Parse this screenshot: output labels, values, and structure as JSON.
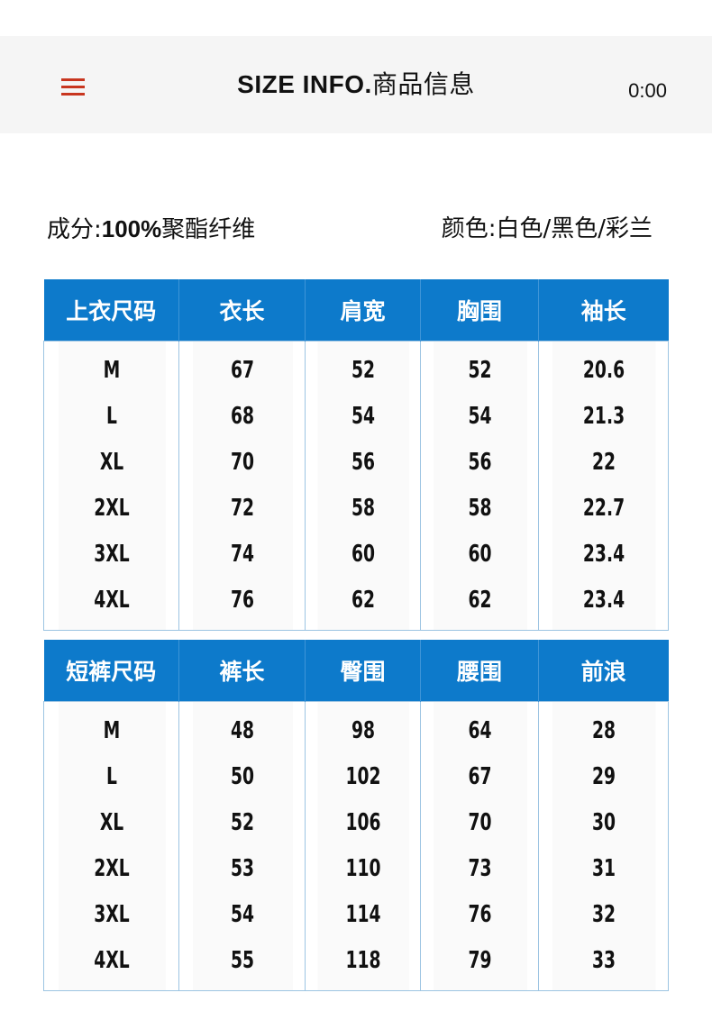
{
  "header": {
    "title_en": "SIZE INFO.",
    "title_cn": "商品信息",
    "time": "0:00",
    "menu_icon": "hamburger-menu-icon",
    "menu_color": "#c8361f"
  },
  "info": {
    "composition_label": "成分:",
    "composition_value": "100%",
    "composition_material": "聚酯纤维",
    "color_label": "颜色:",
    "color_value": "白色/黑色/彩兰"
  },
  "colors": {
    "table_header": "#0d7acb",
    "table_border": "#9cc4e2"
  },
  "top_table": {
    "headers": [
      "上衣尺码",
      "衣长",
      "肩宽",
      "胸围",
      "袖长"
    ],
    "rows": [
      [
        "M",
        "67",
        "52",
        "52",
        "20.6"
      ],
      [
        "L",
        "68",
        "54",
        "54",
        "21.3"
      ],
      [
        "XL",
        "70",
        "56",
        "56",
        "22"
      ],
      [
        "2XL",
        "72",
        "58",
        "58",
        "22.7"
      ],
      [
        "3XL",
        "74",
        "60",
        "60",
        "23.4"
      ],
      [
        "4XL",
        "76",
        "62",
        "62",
        "23.4"
      ]
    ]
  },
  "bottom_table": {
    "headers": [
      "短裤尺码",
      "裤长",
      "臀围",
      "腰围",
      "前浪"
    ],
    "rows": [
      [
        "M",
        "48",
        "98",
        "64",
        "28"
      ],
      [
        "L",
        "50",
        "102",
        "67",
        "29"
      ],
      [
        "XL",
        "52",
        "106",
        "70",
        "30"
      ],
      [
        "2XL",
        "53",
        "110",
        "73",
        "31"
      ],
      [
        "3XL",
        "54",
        "114",
        "76",
        "32"
      ],
      [
        "4XL",
        "55",
        "118",
        "79",
        "33"
      ]
    ]
  }
}
